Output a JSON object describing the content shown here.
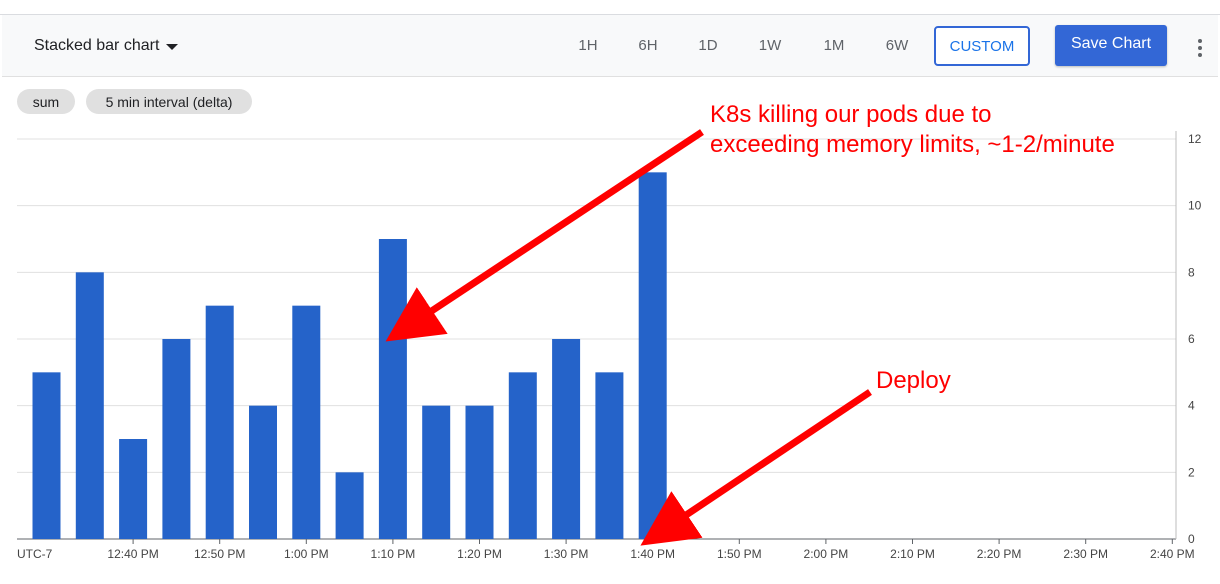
{
  "header": {
    "chart_type_label": "Stacked bar chart",
    "ranges": [
      "1H",
      "6H",
      "1D",
      "1W",
      "1M",
      "6W"
    ],
    "custom_label": "CUSTOM",
    "save_label": "Save Chart",
    "more_icon": "more-vert-icon"
  },
  "chips": {
    "aggregation": "sum",
    "interval": "5 min interval (delta)"
  },
  "chart_data": {
    "type": "bar",
    "stacked": true,
    "timezone_label": "UTC-7",
    "x_tick_labels": [
      "12:40 PM",
      "12:50 PM",
      "1:00 PM",
      "1:10 PM",
      "1:20 PM",
      "1:30 PM",
      "1:40 PM",
      "1:50 PM",
      "2:00 PM",
      "2:10 PM",
      "2:20 PM",
      "2:30 PM",
      "2:40 PM"
    ],
    "x": [
      "12:30 PM",
      "12:35 PM",
      "12:40 PM",
      "12:45 PM",
      "12:50 PM",
      "12:55 PM",
      "1:00 PM",
      "1:05 PM",
      "1:10 PM",
      "1:15 PM",
      "1:20 PM",
      "1:25 PM",
      "1:30 PM",
      "1:35 PM",
      "1:40 PM"
    ],
    "values": [
      5,
      8,
      3,
      6,
      7,
      4,
      7,
      2,
      9,
      4,
      4,
      5,
      6,
      5,
      11
    ],
    "y_ticks": [
      0,
      2,
      4,
      6,
      8,
      10,
      12
    ],
    "ylim": [
      0,
      12
    ],
    "y_axis_side": "right",
    "grid": true,
    "bar_color": "#2563c9",
    "annotation_color": "#ff0000",
    "annotations": [
      {
        "text_lines": [
          "K8s killing our pods due to",
          "exceeding memory limits, ~1-2/minute"
        ],
        "points_to_x": "1:10 PM",
        "points_to_value": 6
      },
      {
        "text_lines": [
          "Deploy"
        ],
        "points_to_x": "1:40 PM",
        "points_to_value": 0
      }
    ]
  }
}
